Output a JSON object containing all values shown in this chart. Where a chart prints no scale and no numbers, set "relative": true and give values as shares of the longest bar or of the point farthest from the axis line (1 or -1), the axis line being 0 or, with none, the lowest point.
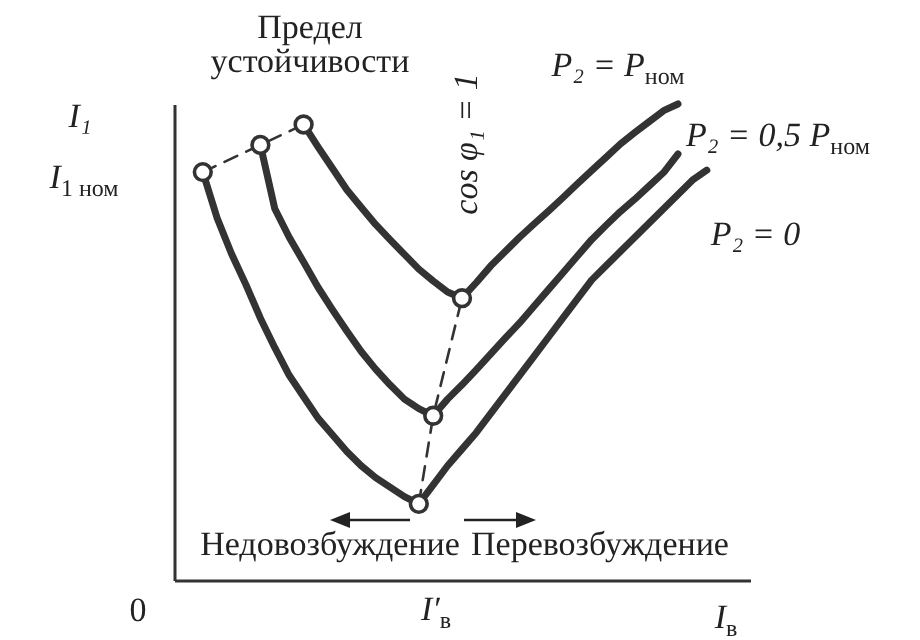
{
  "chart_data": {
    "type": "line",
    "relative": true,
    "xlabel": "I$_{в}$",
    "ylabel": "I₁",
    "line_style": "solid",
    "categories": [
      null,
      null,
      null,
      null,
      null,
      null,
      null,
      null,
      null,
      null,
      null,
      null,
      null,
      null,
      null,
      null,
      null,
      null,
      null,
      null,
      null,
      null,
      null,
      null,
      null,
      null,
      null,
      null,
      null,
      null,
      null,
      null,
      null,
      null,
      null,
      null,
      null,
      null,
      null,
      null,
      null
    ],
    "annotations": [
      "Предел устойчивости",
      "cos φ₁ = 1",
      "Недовозбуждение",
      "Перевозбуждение",
      "0",
      "I$_{1 ном}$",
      "I′$_{в}$"
    ],
    "series": [
      {
        "color": "#333333",
        "line_style": "dashed",
        "marker": "circle",
        "values": [
          null,
          null,
          null,
          null,
          null,
          null,
          null,
          null,
          null,
          null,
          null,
          null,
          null,
          null,
          null,
          null,
          null,
          0.16,
          0.345,
          null,
          0.592,
          null,
          null,
          null,
          null,
          null,
          null,
          null,
          null,
          null,
          null,
          null,
          null,
          null,
          null,
          null,
          null,
          null,
          null,
          null,
          null
        ]
      },
      {
        "color": "#333333",
        "line_style": "dashed",
        "marker": "circle",
        "values": [
          null,
          null,
          0.857,
          null,
          null,
          null,
          0.914,
          null,
          null,
          0.957,
          null,
          null,
          null,
          null,
          null,
          null,
          null,
          null,
          null,
          null,
          null,
          null,
          null,
          null,
          null,
          null,
          null,
          null,
          null,
          null,
          null,
          null,
          null,
          null,
          null,
          null,
          null,
          null,
          null,
          null,
          null
        ]
      },
      {
        "name": "P₂ = P$_{ном}$",
        "color": "#333333",
        "values": [
          null,
          null,
          null,
          null,
          null,
          null,
          null,
          null,
          null,
          0.957,
          0.91,
          0.865,
          0.82,
          0.783,
          0.747,
          0.715,
          0.684,
          0.653,
          0.628,
          0.605,
          0.592,
          0.625,
          0.66,
          0.69,
          0.72,
          0.748,
          0.775,
          0.803,
          0.832,
          0.86,
          0.888,
          0.916,
          0.94,
          0.963,
          0.986,
          1.0,
          null,
          null,
          null,
          null,
          null
        ]
      },
      {
        "name": "P₂ = 0,5 P$_{ном}$",
        "color": "#333333",
        "values": [
          null,
          null,
          null,
          null,
          null,
          null,
          0.914,
          0.78,
          0.72,
          0.668,
          0.615,
          0.568,
          0.523,
          0.48,
          0.443,
          0.41,
          0.38,
          0.36,
          0.345,
          0.38,
          0.41,
          0.442,
          0.475,
          0.508,
          0.54,
          0.575,
          0.61,
          0.645,
          0.68,
          0.715,
          0.745,
          0.774,
          0.8,
          0.828,
          0.856,
          0.895,
          null,
          null,
          null,
          null,
          null
        ]
      },
      {
        "name": "P₂ = 0",
        "color": "#333333",
        "values": [
          null,
          null,
          0.857,
          0.76,
          0.685,
          0.62,
          0.55,
          0.488,
          0.43,
          0.385,
          0.34,
          0.305,
          0.27,
          0.24,
          0.215,
          0.195,
          0.175,
          0.16,
          0.2,
          0.24,
          0.275,
          0.31,
          0.35,
          0.39,
          0.43,
          0.47,
          0.51,
          0.55,
          0.59,
          0.63,
          0.66,
          0.69,
          0.72,
          0.75,
          0.78,
          0.81,
          0.84,
          0.861,
          null,
          null,
          null
        ]
      }
    ]
  }
}
